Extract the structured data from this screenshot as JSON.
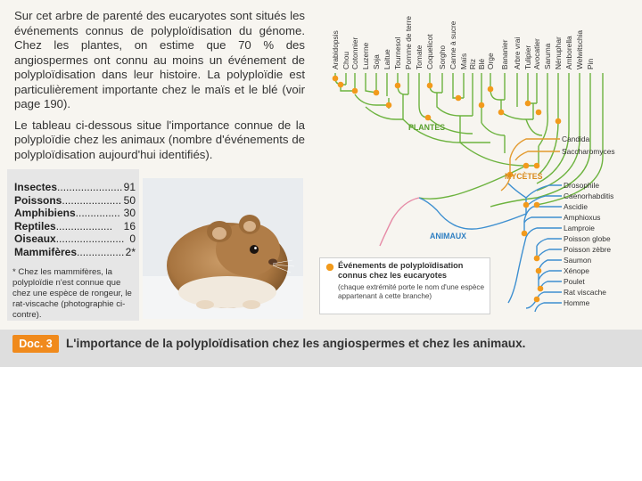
{
  "intro": {
    "paragraph1": "Sur cet arbre de parenté des eucaryotes sont situés les événements connus de polyploïdisation du génome. Chez les plantes, on estime que 70 % des angiospermes ont connu au moins un événement de polyploïdisation dans leur histoire. La polyploïdie est particulièrement importante chez le maïs et le blé (voir page 190).",
    "paragraph2": "Le tableau ci-dessous situe l'importance connue de la polyploïdie chez les animaux (nombre d'événements de polyploïdisation aujourd'hui identifiés)."
  },
  "animal_table": [
    {
      "name": "Insectes",
      "dots": "......................",
      "value": "91"
    },
    {
      "name": "Poissons",
      "dots": "....................",
      "value": "50"
    },
    {
      "name": "Amphibiens",
      "dots": "...............",
      "value": "30"
    },
    {
      "name": "Reptiles",
      "dots": "...................",
      "value": "16"
    },
    {
      "name": "Oiseaux",
      "dots": ".......................",
      "value": "0"
    },
    {
      "name": "Mammifères",
      "dots": "................",
      "value": "2*"
    }
  ],
  "footnote": "* Chez les mammifères, la polyploïdie n'est connue que chez une espèce de rongeur, le rat-viscache (photographie ci-contre).",
  "tree": {
    "plant_species": [
      "Arabidopsis",
      "Chou",
      "Cotonnier",
      "Luzerne",
      "Soja",
      "Laitue",
      "Tournesol",
      "Pomme de terre",
      "Tomate",
      "Coquelicot",
      "Sorgho",
      "Canne à sucre",
      "Maïs",
      "Riz",
      "Blé",
      "Orge",
      "Bananier",
      "Arbre vrai",
      "Tulipier",
      "Avocatier",
      "Saruma",
      "Nénuphar",
      "Amborella",
      "Welwitschia",
      "Pin"
    ],
    "fungi_species": [
      "Candida",
      "Saccharomyces"
    ],
    "animal_species": [
      "Drosophile",
      "Caenorhabditis",
      "Ascidie",
      "Amphioxus",
      "Lamproie",
      "Poisson globe",
      "Poisson zèbre",
      "Saumon",
      "Xénope",
      "Poulet",
      "Rat viscache",
      "Homme"
    ],
    "group_plants": "PLANTES",
    "group_fungi": "MYCÈTES",
    "group_animals": "ANIMAUX",
    "colors": {
      "plants": "#6db33f",
      "fungi": "#e39a2e",
      "animals": "#3d8fd0",
      "event": "#f29a1c",
      "root": "#e68aa6"
    }
  },
  "legend": {
    "title": "Événements de polyploïdisation connus chez les eucaryotes",
    "note": "(chaque extrémité porte le nom d'une espèce appartenant à cette branche)"
  },
  "caption": {
    "badge": "Doc. 3",
    "text": "L'importance de la polyploïdisation chez les angiospermes et chez les animaux."
  }
}
